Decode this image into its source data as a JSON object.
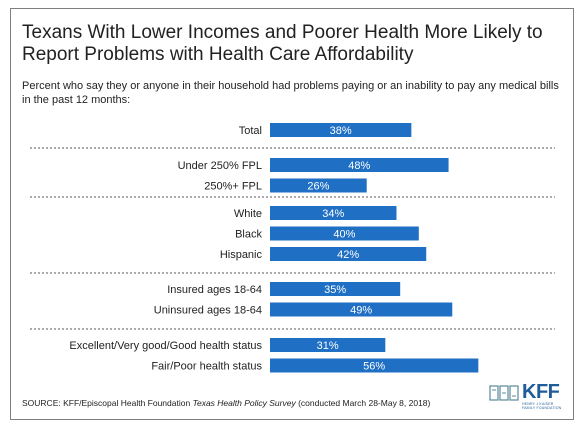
{
  "title": "Texans With Lower Incomes and Poorer Health More Likely to Report Problems with Health Care Affordability",
  "subtitle": "Percent who say they or anyone in their household had problems paying or an inability to pay any medical bills in the past 12 months:",
  "source": {
    "prefix": "SOURCE: KFF/Episcopal Health Foundation ",
    "survey": "Texas Health Policy Survey",
    "suffix": " (conducted March 28-May 8, 2018)"
  },
  "logos": {
    "left_icon": "episcopal-health-foundation-logo",
    "left_text": "EPISCOPAL HEALTH FOUNDATION",
    "right_text": "KFF",
    "right_sub": "HENRY J KAISER FAMILY FOUNDATION"
  },
  "colors": {
    "bar": "#1f6fc4",
    "label_in_bar": "#ffffff",
    "divider": "#555555"
  },
  "chart_data": {
    "type": "bar",
    "orientation": "horizontal",
    "groups": [
      {
        "rows": [
          {
            "label": "Total",
            "value": 38
          }
        ]
      },
      {
        "rows": [
          {
            "label": "Under 250% FPL",
            "value": 48
          },
          {
            "label": "250%+ FPL",
            "value": 26
          }
        ]
      },
      {
        "rows": [
          {
            "label": "White",
            "value": 34
          },
          {
            "label": "Black",
            "value": 40
          },
          {
            "label": "Hispanic",
            "value": 42
          }
        ]
      },
      {
        "rows": [
          {
            "label": "Insured ages 18-64",
            "value": 35
          },
          {
            "label": "Uninsured ages 18-64",
            "value": 49
          }
        ]
      },
      {
        "rows": [
          {
            "label": "Excellent/Very good/Good health status",
            "value": 31
          },
          {
            "label": "Fair/Poor health status",
            "value": 56
          }
        ]
      }
    ],
    "value_suffix": "%",
    "xlim": [
      0,
      100
    ],
    "grid": false,
    "legend": "none"
  }
}
